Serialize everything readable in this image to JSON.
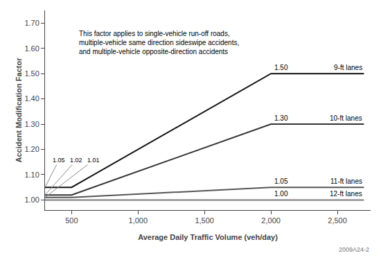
{
  "chart_data": {
    "type": "line",
    "xlabel": "Average Daily Traffic Volume (veh/day)",
    "ylabel": "Accident Modification Factor",
    "annotation": "This factor applies to single-vehicle run-off roads,\nmultiple-vehicle same direction sideswipe accidents,\nand multiple-vehicle opposite-direction accidents",
    "watermark": "2009A24-2",
    "x": [
      300,
      500,
      2000,
      2700
    ],
    "series": [
      {
        "name": "12-ft lanes",
        "color": "#777777",
        "values": [
          1.0,
          1.0,
          1.0,
          1.0
        ],
        "value_labels": [
          null,
          null,
          "1.00",
          null
        ]
      },
      {
        "name": "11-ft lanes",
        "color": "#555555",
        "values": [
          1.01,
          1.01,
          1.05,
          1.05
        ],
        "value_labels": [
          "1.01",
          null,
          "1.05",
          null
        ]
      },
      {
        "name": "10-ft lanes",
        "color": "#333333",
        "values": [
          1.02,
          1.02,
          1.3,
          1.3
        ],
        "value_labels": [
          "1.02",
          null,
          "1.30",
          null
        ]
      },
      {
        "name": "9-ft lanes",
        "color": "#111111",
        "values": [
          1.05,
          1.05,
          1.5,
          1.5
        ],
        "value_labels": [
          "1.05",
          null,
          "1.50",
          null
        ]
      }
    ],
    "xlim": [
      300,
      2750
    ],
    "ylim": [
      0.96,
      1.75
    ],
    "xticks": [
      500,
      {
        "value": 1000,
        "label": "1,000"
      },
      {
        "value": 1500,
        "label": "1,500"
      },
      {
        "value": 2000,
        "label": "2,000"
      },
      {
        "value": 2500,
        "label": "2,500"
      }
    ],
    "yticks": [
      {
        "value": 1.0,
        "label": "1.00"
      },
      {
        "value": 1.1,
        "label": "1.10"
      },
      {
        "value": 1.2,
        "label": "1.20"
      },
      {
        "value": 1.3,
        "label": "1.30"
      },
      {
        "value": 1.4,
        "label": "1.40"
      },
      {
        "value": 1.5,
        "label": "1.50"
      },
      {
        "value": 1.6,
        "label": "1.60"
      },
      {
        "value": 1.7,
        "label": "1.70"
      }
    ],
    "grid": false
  }
}
